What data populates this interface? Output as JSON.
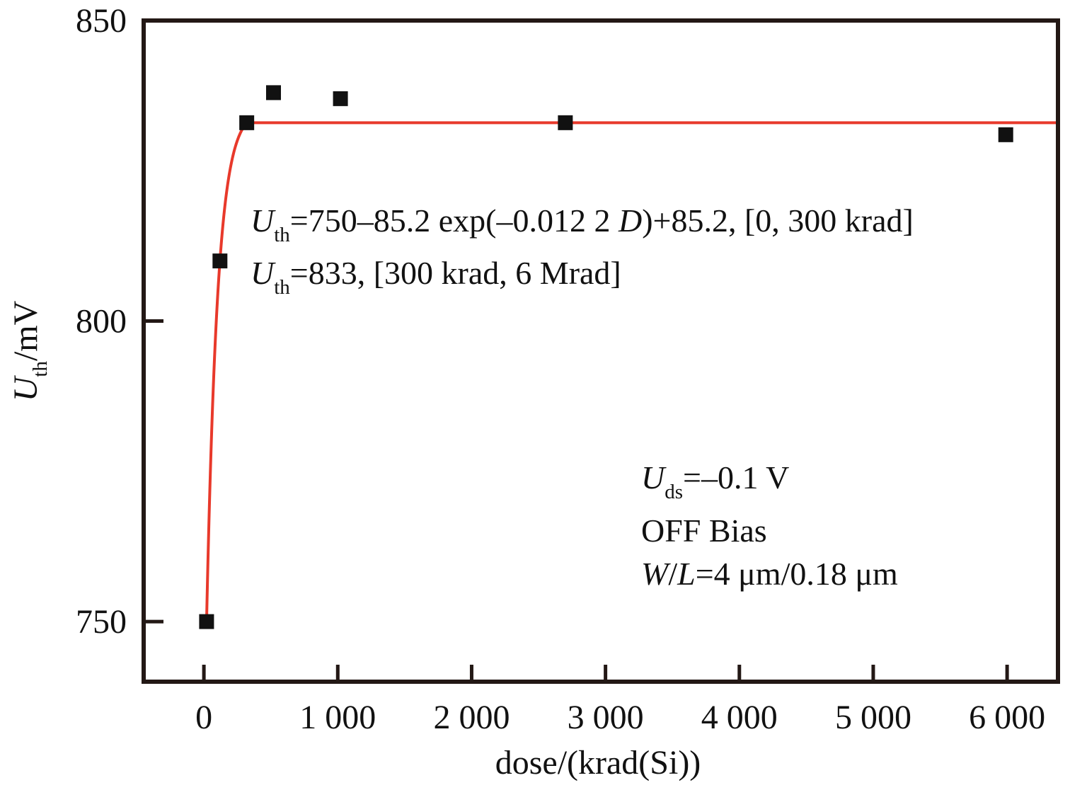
{
  "chart_data": {
    "type": "scatter",
    "xlabel": "dose/(krad(Si))",
    "ylabel": {
      "main": "U",
      "sub": "th",
      "rest": "/mV"
    },
    "xlim": [
      -450,
      6380
    ],
    "ylim": [
      740,
      850
    ],
    "x_ticks": [
      0,
      1000,
      2000,
      3000,
      4000,
      5000,
      6000
    ],
    "x_tick_labels": [
      "0",
      "1 000",
      "2 000",
      "3 000",
      "4 000",
      "5 000",
      "6 000"
    ],
    "y_ticks": [
      750,
      800,
      850
    ],
    "y_tick_labels": [
      "750",
      "800",
      "850"
    ],
    "grid": false,
    "legend": "none",
    "series": [
      {
        "marker": "square",
        "color": "#111111",
        "points": [
          {
            "x": 20,
            "y": 750.0
          },
          {
            "x": 120,
            "y": 810.0
          },
          {
            "x": 320,
            "y": 833.0
          },
          {
            "x": 520,
            "y": 838.0
          },
          {
            "x": 1020,
            "y": 837.0
          },
          {
            "x": 2700,
            "y": 833.0
          },
          {
            "x": 5990,
            "y": 831.0
          }
        ]
      }
    ],
    "fit": {
      "color": "#e8392b",
      "segment1": {
        "base": 750,
        "amp": 85.2,
        "k": 0.0122,
        "from": 20,
        "to": 300
      },
      "segment2": {
        "value": 833,
        "from": 300,
        "to": 6380
      }
    },
    "annotations": {
      "eq1": {
        "var": "U",
        "sub": "th",
        "rest": "=750–85.2 exp(–0.012 2 ",
        "var2": "D",
        "tail": ")+85.2, [0, 300 krad]"
      },
      "eq2": {
        "var": "U",
        "sub": "th",
        "rest": "=833, [300 krad, 6 Mrad]"
      },
      "cond1": {
        "var": "U",
        "sub": "ds",
        "rest": "=–0.1 V"
      },
      "cond2": "OFF Bias",
      "cond3": {
        "var": "W",
        "slash": "/",
        "var2": "L",
        "rest": "=4 μm/0.18 μm"
      }
    }
  }
}
